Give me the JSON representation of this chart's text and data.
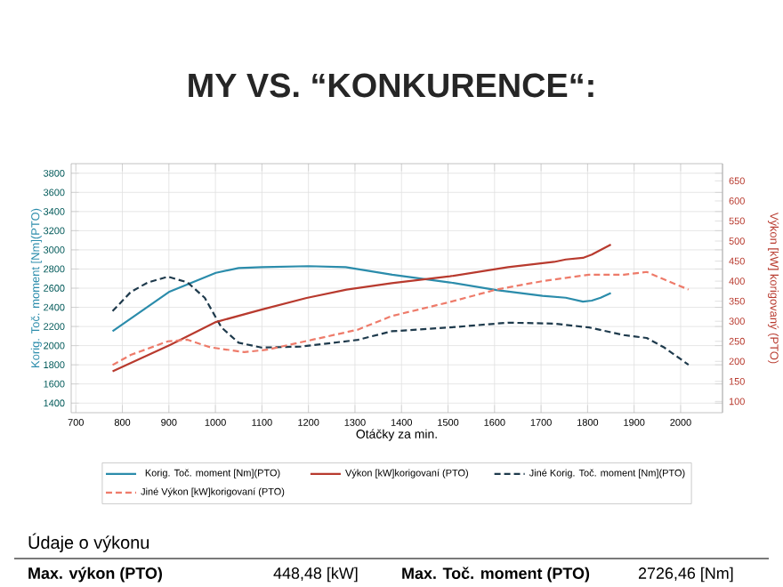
{
  "chart_data": {
    "type": "line",
    "title": "MY VS. “KONKURENCE“:",
    "xlabel": "Otáčky za min.",
    "ylabel": "Korig. Toč. moment [Nm](PTO)",
    "y2label": "Výkon [kW] korigovaný (PTO)",
    "xlim": [
      690,
      2090
    ],
    "xticks": [
      700,
      800,
      900,
      1000,
      1100,
      1200,
      1300,
      1400,
      1500,
      1600,
      1700,
      1800,
      1900,
      2000
    ],
    "ylim": [
      1300,
      3900
    ],
    "yticks": [
      1400,
      1600,
      1800,
      2000,
      2200,
      2400,
      2600,
      2800,
      3000,
      3200,
      3400,
      3600,
      3800
    ],
    "y2lim": [
      72,
      693
    ],
    "y2ticks": [
      100,
      150,
      200,
      250,
      300,
      350,
      400,
      450,
      500,
      550,
      600,
      650
    ],
    "grid": true,
    "legend": "bottom",
    "marker": "none",
    "series": [
      {
        "name": "Korig. Toč. moment [Nm](PTO)",
        "color": "#2b8cab",
        "line_style": "solid",
        "x": [
          779,
          900,
          940,
          1001,
          1050,
          1100,
          1200,
          1280,
          1380,
          1504,
          1604,
          1703,
          1753,
          1790,
          1809,
          1828,
          1850
        ],
        "values": [
          2150,
          2560,
          2640,
          2760,
          2810,
          2820,
          2830,
          2820,
          2740,
          2660,
          2580,
          2520,
          2500,
          2460,
          2470,
          2500,
          2550
        ]
      },
      {
        "name": "Výkon [kW]korigovaní (PTO)",
        "color": "#b83a2e",
        "line_style": "solid",
        "axis": "y2",
        "x": [
          779,
          903,
          1001,
          1099,
          1196,
          1282,
          1379,
          1504,
          1629,
          1728,
          1753,
          1790,
          1809,
          1850
        ],
        "values": [
          175,
          241,
          298,
          329,
          358,
          379,
          395,
          412,
          435,
          448,
          454,
          458,
          466,
          491
        ]
      },
      {
        "name": "Jiné Korig. Toč. moment [Nm](PTO)",
        "color": "#1e3a4c",
        "line_style": "dashed",
        "x": [
          779,
          818,
          855,
          898,
          940,
          977,
          1013,
          1050,
          1099,
          1184,
          1306,
          1379,
          1504,
          1629,
          1728,
          1803,
          1878,
          1927,
          1965,
          2017
        ],
        "values": [
          2360,
          2560,
          2660,
          2720,
          2660,
          2500,
          2190,
          2030,
          1980,
          1990,
          2060,
          2150,
          2190,
          2240,
          2230,
          2190,
          2110,
          2080,
          1980,
          1800
        ]
      },
      {
        "name": "Jiné Výkon [kW]korigovaní (PTO)",
        "color": "#ee7b6a",
        "line_style": "dashed",
        "axis": "y2",
        "x": [
          779,
          818,
          898,
          940,
          989,
          1062,
          1111,
          1209,
          1306,
          1379,
          1504,
          1604,
          1703,
          1803,
          1878,
          1927,
          1965,
          2017
        ],
        "values": [
          191,
          216,
          250,
          254,
          235,
          223,
          229,
          254,
          279,
          313,
          348,
          379,
          400,
          416,
          416,
          423,
          404,
          379
        ]
      }
    ],
    "annotations": [
      "Údaje o výkonu",
      "Max. výkon (PTO)",
      "448,48 [kW]",
      "Max. Toč. moment (PTO)",
      "2726,46 [Nm]"
    ]
  }
}
